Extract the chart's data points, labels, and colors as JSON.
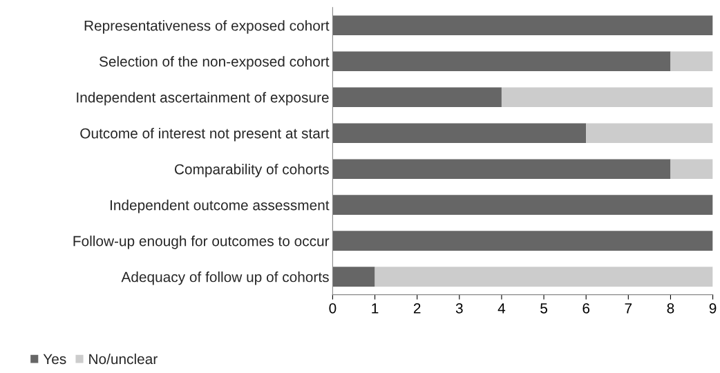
{
  "chart_data": {
    "type": "bar",
    "orientation": "horizontal",
    "stacked": true,
    "categories": [
      "Representativeness of exposed cohort",
      "Selection of the non-exposed cohort",
      "Independent ascertainment of exposure",
      "Outcome of interest not present at start",
      "Comparability of cohorts",
      "Independent outcome assessment",
      "Follow-up enough for outcomes to occur",
      "Adequacy of follow up of cohorts"
    ],
    "series": [
      {
        "name": "Yes",
        "color": "#666666",
        "values": [
          9,
          8,
          4,
          6,
          8,
          9,
          9,
          1
        ]
      },
      {
        "name": "No/unclear",
        "color": "#cccccc",
        "values": [
          0,
          1,
          5,
          3,
          1,
          0,
          0,
          8
        ]
      }
    ],
    "xlim": [
      0,
      9
    ],
    "xticks": [
      0,
      1,
      2,
      3,
      4,
      5,
      6,
      7,
      8,
      9
    ],
    "grid": false,
    "legend": "bottom left"
  }
}
